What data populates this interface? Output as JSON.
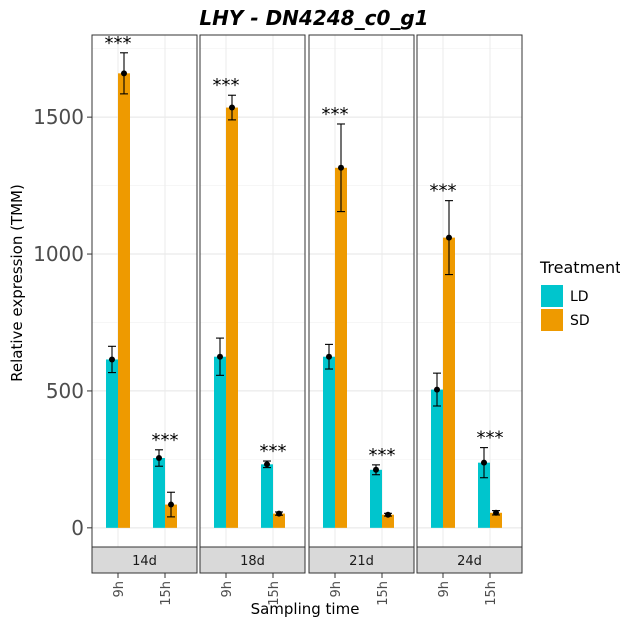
{
  "chart_data": {
    "type": "bar",
    "title": "LHY - DN4248_c0_g1",
    "xlabel": "Sampling time",
    "ylabel": "Relative expression (TMM)",
    "ylim": [
      -70,
      1800
    ],
    "yticks": [
      0,
      500,
      1000,
      1500
    ],
    "grid": true,
    "legend": {
      "title": "Treatment",
      "position": "right",
      "entries": [
        {
          "name": "LD",
          "color": "#00C5CD"
        },
        {
          "name": "SD",
          "color": "#EE9A00"
        }
      ]
    },
    "categories": [
      "9h",
      "15h"
    ],
    "panels": [
      {
        "label": "14d",
        "groups": [
          {
            "time": "9h",
            "LD": {
              "value": 615,
              "err": 48
            },
            "SD": {
              "value": 1660,
              "err": 75
            },
            "significance": "***"
          },
          {
            "time": "15h",
            "LD": {
              "value": 255,
              "err": 30
            },
            "SD": {
              "value": 85,
              "err": 45
            },
            "significance": "***"
          }
        ]
      },
      {
        "label": "18d",
        "groups": [
          {
            "time": "9h",
            "LD": {
              "value": 625,
              "err": 68
            },
            "SD": {
              "value": 1535,
              "err": 45
            },
            "significance": "***"
          },
          {
            "time": "15h",
            "LD": {
              "value": 232,
              "err": 12
            },
            "SD": {
              "value": 52,
              "err": 6
            },
            "significance": "***"
          }
        ]
      },
      {
        "label": "21d",
        "groups": [
          {
            "time": "9h",
            "LD": {
              "value": 625,
              "err": 45
            },
            "SD": {
              "value": 1315,
              "err": 160
            },
            "significance": "***"
          },
          {
            "time": "15h",
            "LD": {
              "value": 212,
              "err": 18
            },
            "SD": {
              "value": 48,
              "err": 5
            },
            "significance": "***"
          }
        ]
      },
      {
        "label": "24d",
        "groups": [
          {
            "time": "9h",
            "LD": {
              "value": 505,
              "err": 60
            },
            "SD": {
              "value": 1060,
              "err": 135
            },
            "significance": "***"
          },
          {
            "time": "15h",
            "LD": {
              "value": 238,
              "err": 55
            },
            "SD": {
              "value": 55,
              "err": 8
            },
            "significance": "***"
          }
        ]
      }
    ]
  }
}
